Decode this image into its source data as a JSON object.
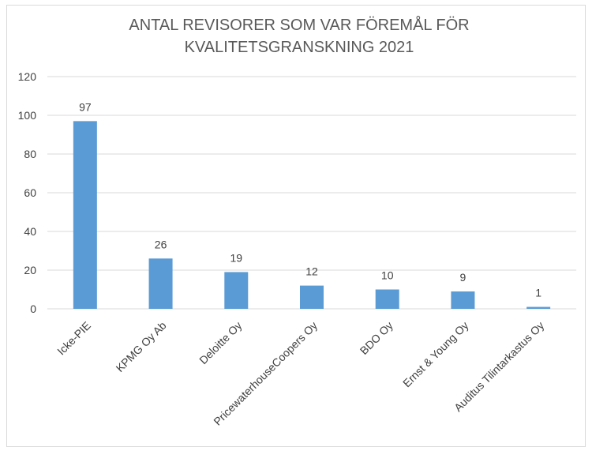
{
  "chart_data": {
    "type": "bar",
    "title_lines": [
      "ANTAL REVISORER SOM VAR FÖREMÅL FÖR",
      "KVALITETSGRANSKNING 2021"
    ],
    "categories": [
      "Icke-PIE",
      "KPMG Oy Ab",
      "Deloitte Oy",
      "PricewaterhouseCoopers Oy",
      "BDO Oy",
      "Ernst & Young Oy",
      "Auditus Tilintarkastus Oy"
    ],
    "values": [
      97,
      26,
      19,
      12,
      10,
      9,
      1
    ],
    "ylim": [
      0,
      120
    ],
    "yticks": [
      0,
      20,
      40,
      60,
      80,
      100,
      120
    ],
    "xlabel": "",
    "ylabel": "",
    "grid": true,
    "bar_color": "#5b9bd5"
  }
}
